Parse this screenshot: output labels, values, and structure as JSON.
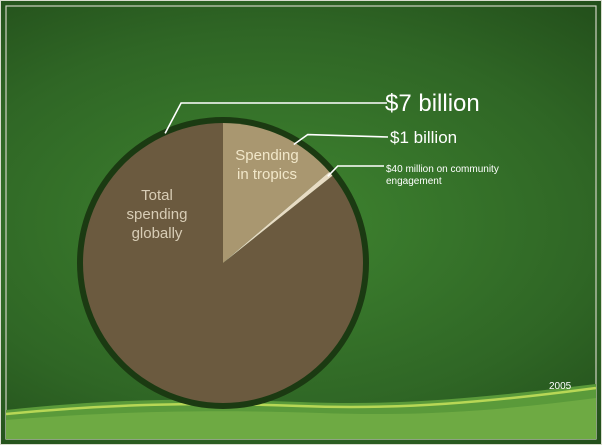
{
  "slide": {
    "year": "2005",
    "colors": {
      "background_green": "#2f6625",
      "total_slice": "#6b5a3f",
      "tropics_slice": "#a99770",
      "community_slice": "#e8dcc4",
      "pie_rim": "#1b3a12",
      "callout_text": "#ffffff"
    }
  },
  "chart_data": {
    "type": "pie",
    "title": "",
    "unit": "USD",
    "slices": [
      {
        "label": "Total spending globally",
        "value": 7000000000,
        "value_label": "$7 billion"
      },
      {
        "label": "Spending in tropics",
        "value": 1000000000,
        "value_label": "$1 billion"
      },
      {
        "label": "",
        "value": 40000000,
        "value_label": "$40 million on community engagement"
      }
    ],
    "in_slice_labels": {
      "total": "Total\nspending\nglobally",
      "tropics": "Spending\nin tropics"
    },
    "callouts": {
      "total": "$7 billion",
      "tropics": "$1 billion",
      "community": "$40 million on community\nengagement"
    },
    "legend": "none"
  }
}
